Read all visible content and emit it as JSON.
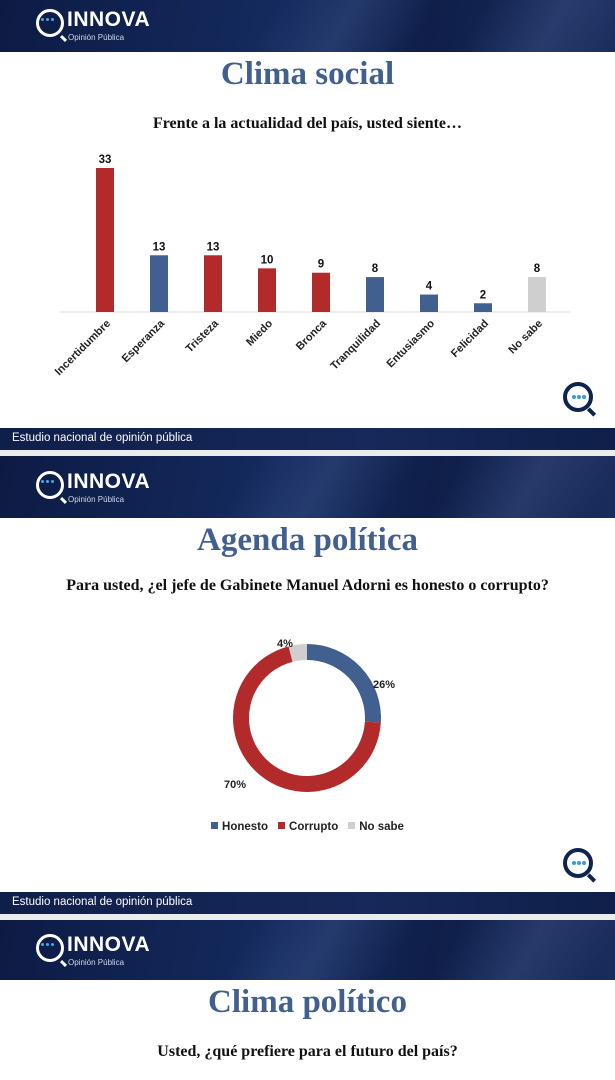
{
  "brand": {
    "name": "INNOVA",
    "subtitle": "Opinión Pública"
  },
  "footer_text": "Estudio nacional de opinión pública",
  "colors": {
    "header_navy": "#0f1f4a",
    "title_blue": "#41608f",
    "bar_red": "#b22a2a",
    "bar_blue": "#41608f",
    "bar_gray": "#cfcfcf"
  },
  "slides": [
    {
      "title": "Clima social",
      "question": "Frente a la actualidad del país, usted siente…"
    },
    {
      "title": "Agenda política",
      "question": "Para usted, ¿el jefe de Gabinete Manuel Adorni es honesto o corrupto?"
    },
    {
      "title": "Clima político",
      "question": "Usted, ¿qué prefiere para el futuro del país?"
    }
  ],
  "chart_data": [
    {
      "type": "bar",
      "categories": [
        "Incertidumbre",
        "Esperanza",
        "Tristeza",
        "Miedo",
        "Bronca",
        "Tranquilidad",
        "Entusiasmo",
        "Felicidad",
        "No sabe"
      ],
      "values": [
        33,
        13,
        13,
        10,
        9,
        8,
        4,
        2,
        8
      ],
      "bar_colors": [
        "#b22a2a",
        "#41608f",
        "#b22a2a",
        "#b22a2a",
        "#b22a2a",
        "#41608f",
        "#41608f",
        "#41608f",
        "#cfcfcf"
      ],
      "data_labels": [
        "33",
        "13",
        "13",
        "10",
        "9",
        "8",
        "4",
        "2",
        "8"
      ],
      "ylim": [
        0,
        35
      ],
      "grid": false,
      "legend": "none"
    },
    {
      "type": "pie",
      "subtype": "donut",
      "categories": [
        "Honesto",
        "Corrupto",
        "No sabe"
      ],
      "values": [
        26,
        70,
        4
      ],
      "data_labels": [
        "26%",
        "70%",
        "4%"
      ],
      "colors": [
        "#41608f",
        "#b22a2a",
        "#cfcfcf"
      ],
      "legend": "bottom"
    }
  ]
}
